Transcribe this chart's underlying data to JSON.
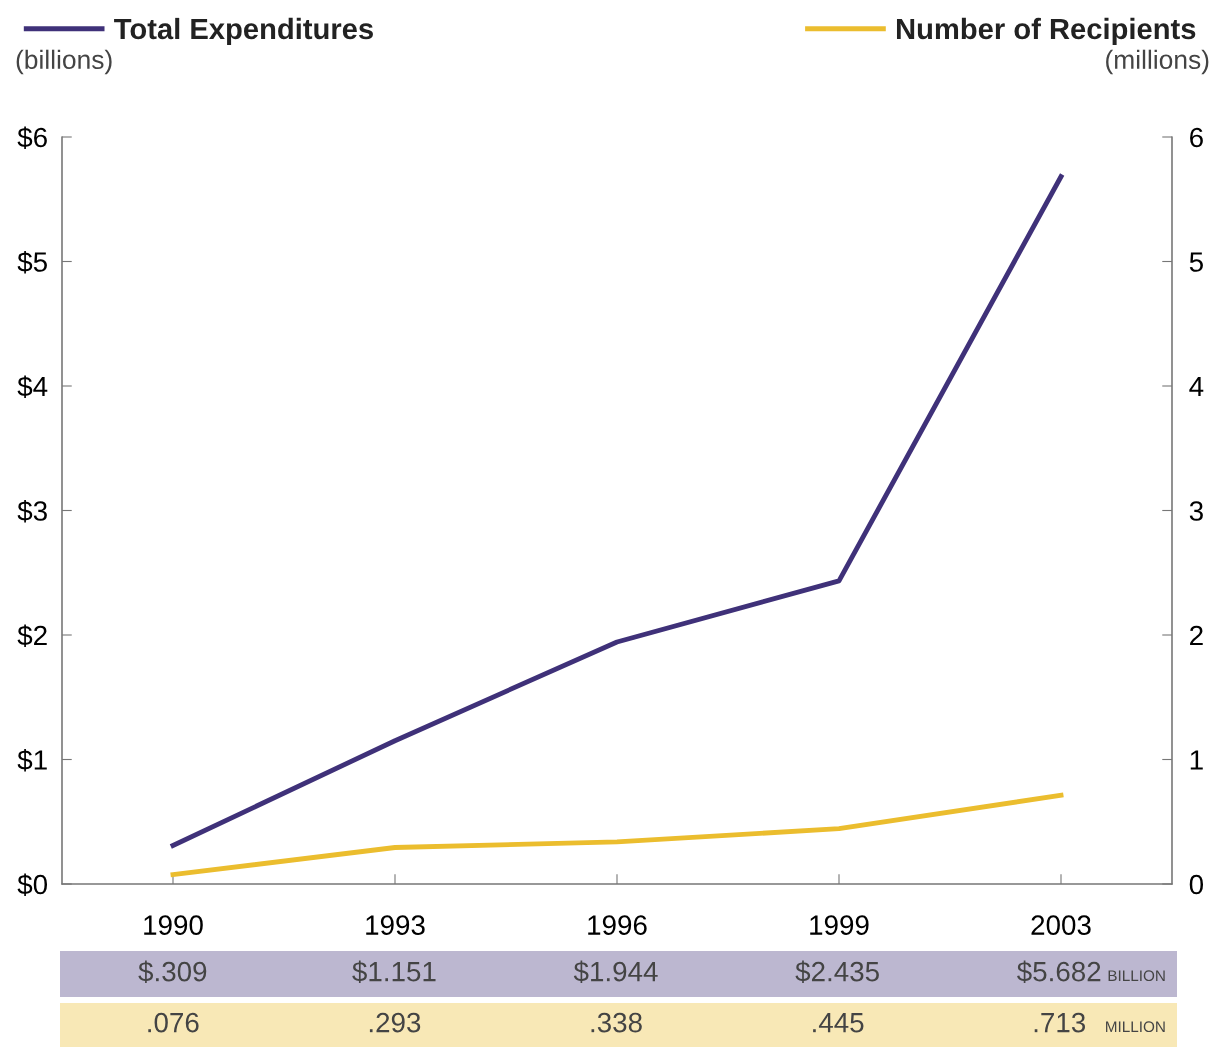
{
  "chart_data": {
    "type": "line",
    "categories": [
      "1990",
      "1993",
      "1996",
      "1999",
      "2003"
    ],
    "series": [
      {
        "name": "Total Expenditures",
        "color": "#3f3179",
        "values": [
          0.309,
          1.151,
          1.944,
          2.435,
          5.682
        ],
        "value_labels": [
          "$.309",
          "$1.151",
          "$1.944",
          "$2.435",
          "$5.682"
        ]
      },
      {
        "name": "Number of Recipients",
        "color": "#ebbd2e",
        "axis": "y2",
        "values": [
          0.076,
          0.293,
          0.338,
          0.445,
          0.713
        ],
        "value_labels": [
          ".076",
          ".293",
          ".338",
          ".445",
          ".713"
        ]
      }
    ],
    "ylabel": "(billions)",
    "y2label": "(millions)",
    "ylim": [
      0,
      6
    ],
    "yticks": [
      {
        "value": 0,
        "label": "$0"
      },
      {
        "value": 1,
        "label": "$1"
      },
      {
        "value": 2,
        "label": "$2"
      },
      {
        "value": 3,
        "label": "$3"
      },
      {
        "value": 4,
        "label": "$4"
      },
      {
        "value": 5,
        "label": "$5"
      },
      {
        "value": 6,
        "label": "$6"
      }
    ],
    "y2lim": [
      0,
      6
    ],
    "y2ticks": [
      0,
      1,
      2,
      3,
      4,
      5,
      6
    ],
    "annotations": [
      "BILLION",
      "MILLION"
    ],
    "legend": "top",
    "grid": false,
    "marker": "none",
    "line_style": "solid"
  }
}
